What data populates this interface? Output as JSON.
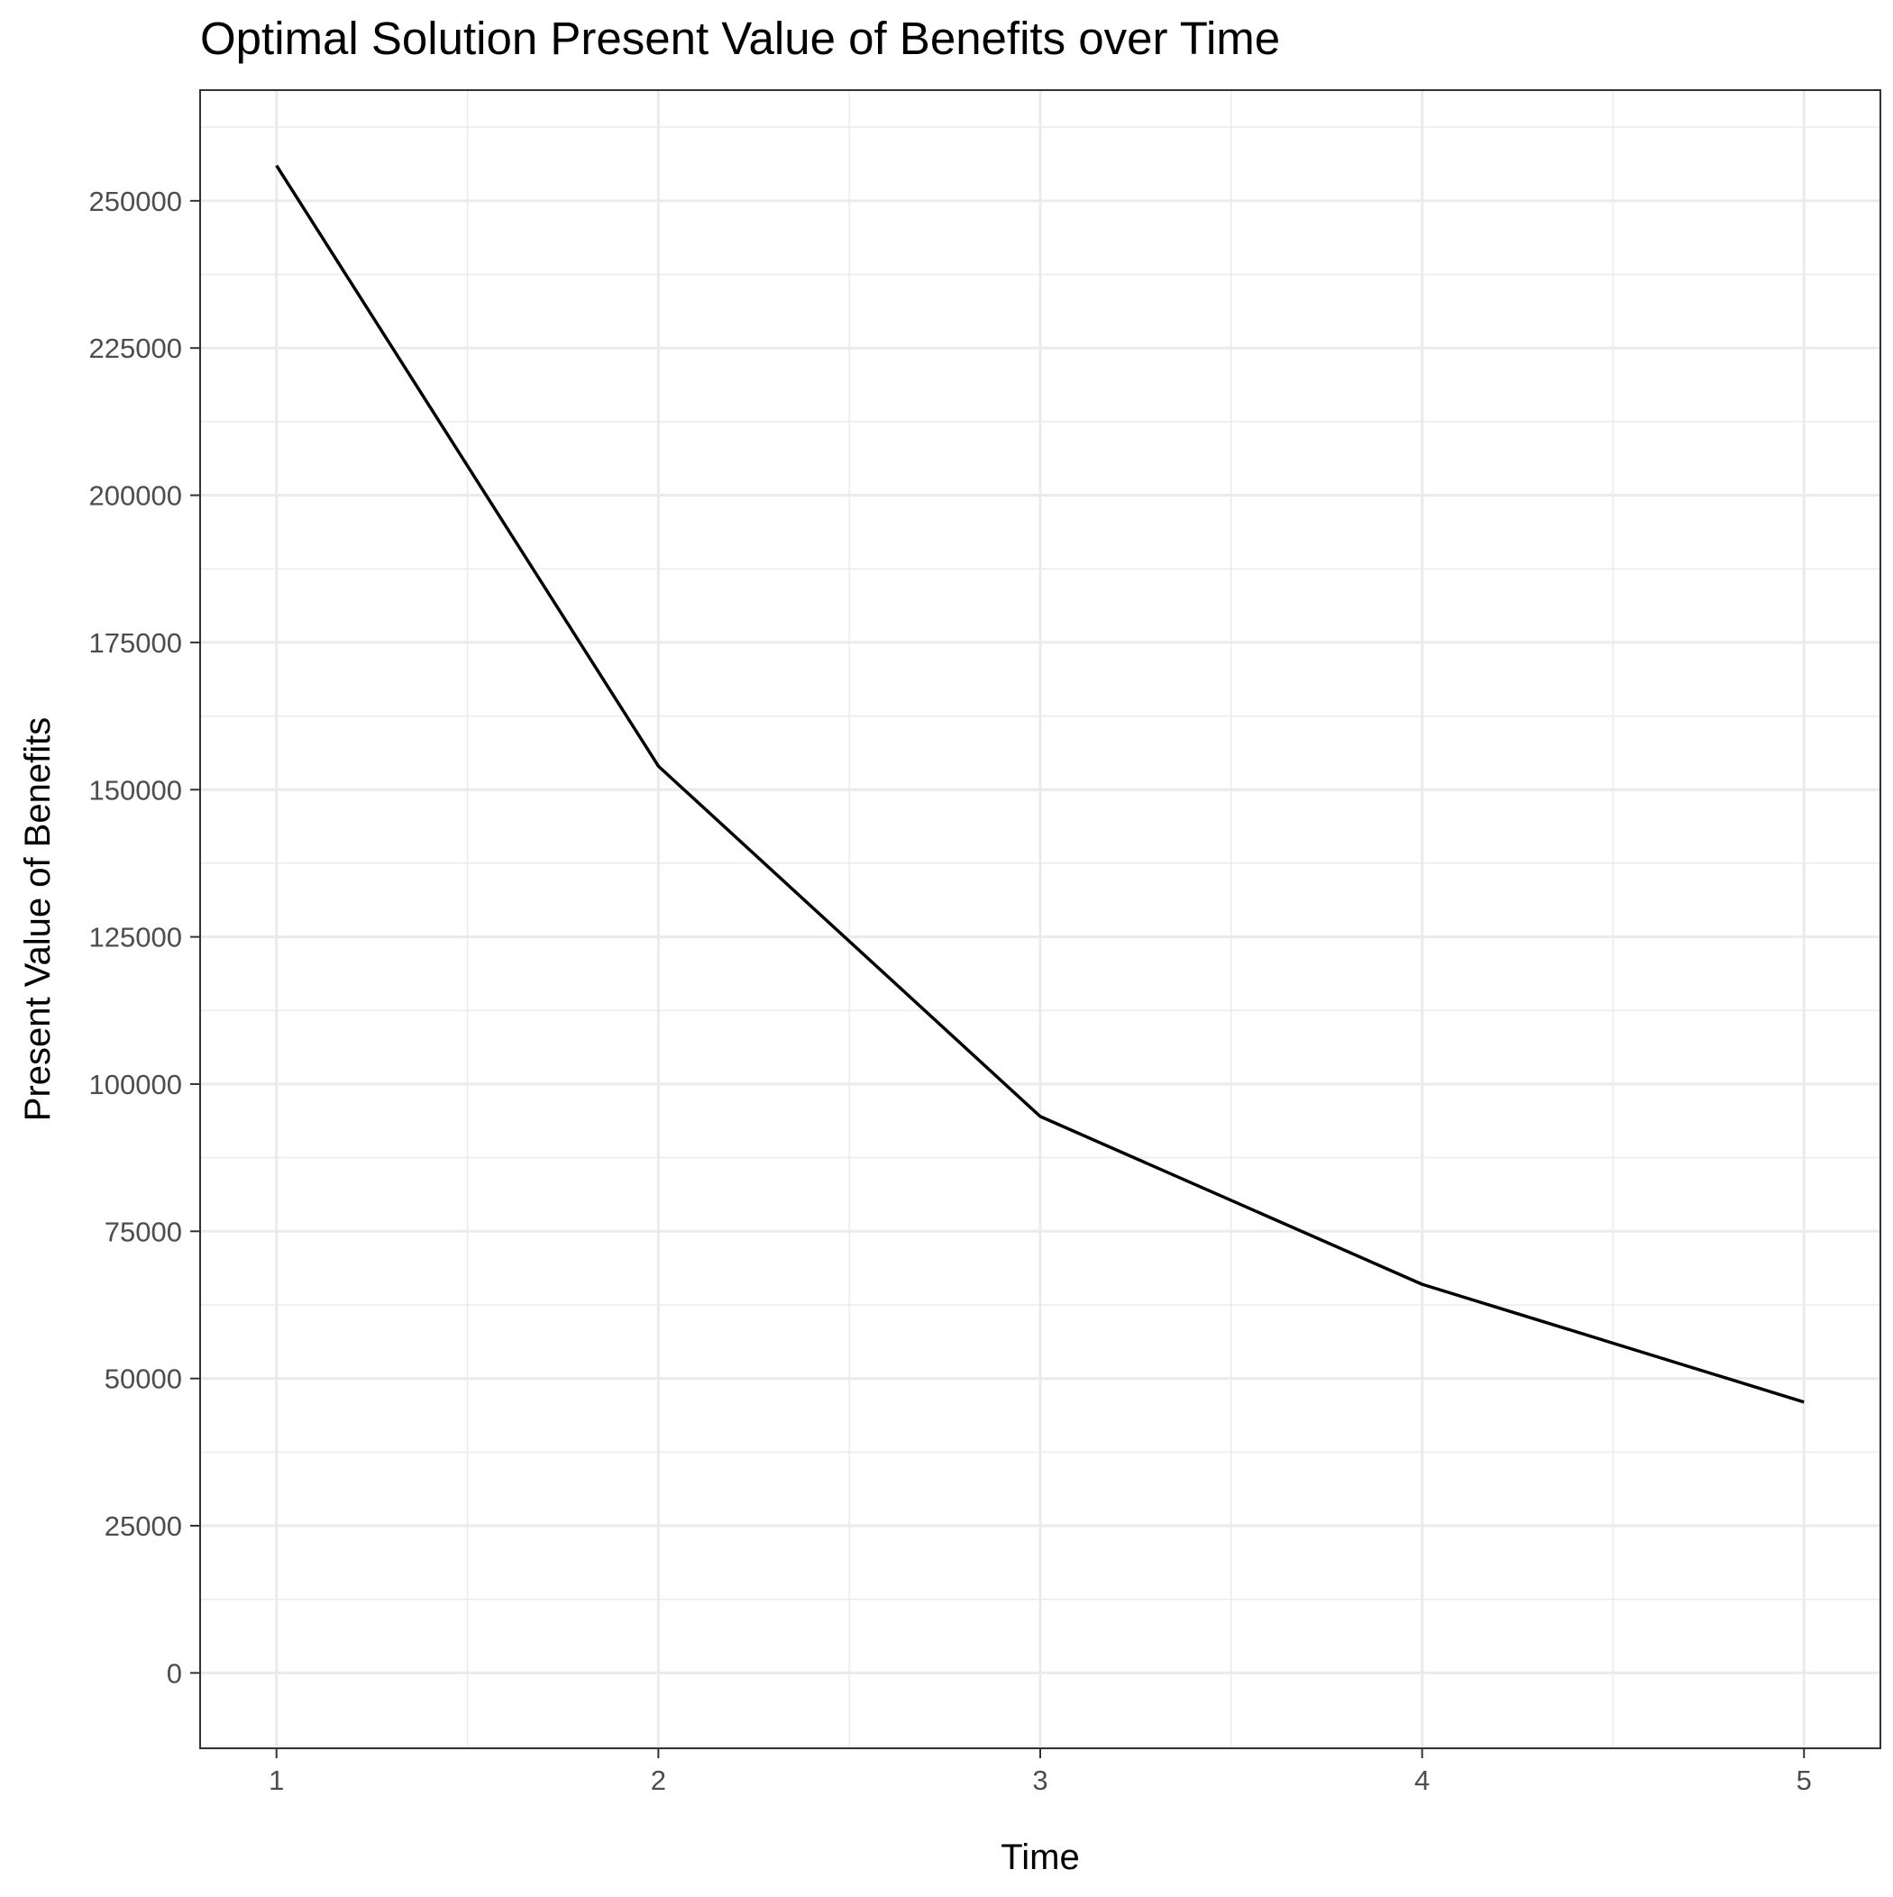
{
  "chart_data": {
    "type": "line",
    "title": "Optimal Solution Present Value of Benefits over Time",
    "xlabel": "Time",
    "ylabel": "Present Value of Benefits",
    "x": [
      1,
      2,
      3,
      4,
      5
    ],
    "series": [
      {
        "values": [
          256000,
          154000,
          94500,
          66000,
          46000
        ]
      }
    ],
    "xlim": [
      0.8,
      5.2
    ],
    "ylim": [
      -12800,
      268800
    ],
    "x_ticks": [
      1,
      2,
      3,
      4,
      5
    ],
    "x_tick_labels": [
      "1",
      "2",
      "3",
      "4",
      "5"
    ],
    "y_ticks": [
      0,
      25000,
      50000,
      75000,
      100000,
      125000,
      150000,
      175000,
      200000,
      225000,
      250000
    ],
    "y_tick_labels": [
      "0",
      "25000",
      "50000",
      "75000",
      "100000",
      "125000",
      "150000",
      "175000",
      "200000",
      "225000",
      "250000"
    ],
    "grid": true,
    "legend": "none",
    "colors": {
      "line": "#000000",
      "grid": "#ebebeb",
      "tick_label": "#4d4d4d",
      "border": "#333333",
      "background": "#ffffff"
    }
  }
}
